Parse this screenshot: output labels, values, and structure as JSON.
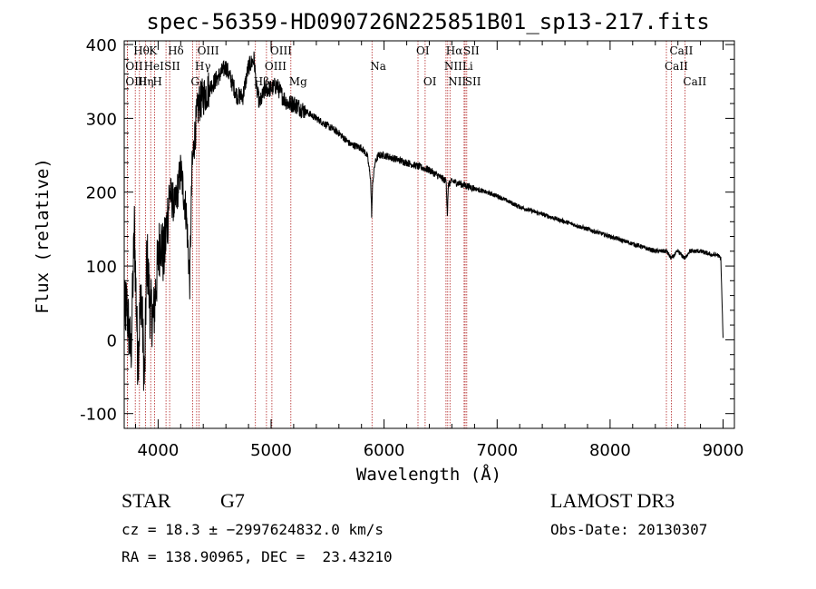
{
  "chart_data": {
    "type": "line",
    "title": "spec-56359-HD090726N225851B01_sp13-217.fits",
    "xlabel": "Wavelength (Å)",
    "ylabel": "Flux (relative)",
    "xlim": [
      3700,
      9100
    ],
    "ylim": [
      -120,
      405
    ],
    "xticks": [
      4000,
      5000,
      6000,
      7000,
      8000,
      9000
    ],
    "yticks": [
      -100,
      0,
      100,
      200,
      300,
      400
    ],
    "spectrum_anchors": {
      "x": [
        3700,
        3720,
        3760,
        3790,
        3820,
        3850,
        3880,
        3900,
        3930,
        3960,
        3990,
        4020,
        4050,
        4080,
        4100,
        4150,
        4200,
        4250,
        4280,
        4300,
        4320,
        4340,
        4360,
        4400,
        4450,
        4500,
        4550,
        4600,
        4650,
        4700,
        4750,
        4800,
        4850,
        4870,
        4900,
        4950,
        5000,
        5050,
        5100,
        5150,
        5200,
        5250,
        5300,
        5400,
        5500,
        5600,
        5700,
        5800,
        5850,
        5880,
        5890,
        5900,
        5920,
        5950,
        6000,
        6100,
        6200,
        6300,
        6400,
        6500,
        6550,
        6560,
        6570,
        6600,
        6700,
        6800,
        6900,
        7000,
        7200,
        7400,
        7600,
        7800,
        8000,
        8200,
        8400,
        8500,
        8542,
        8600,
        8662,
        8700,
        8800,
        8900,
        8950,
        8980,
        9000
      ],
      "y": [
        30,
        50,
        -20,
        150,
        -30,
        70,
        -60,
        120,
        40,
        30,
        90,
        140,
        110,
        160,
        200,
        180,
        230,
        170,
        80,
        230,
        270,
        300,
        320,
        330,
        340,
        350,
        360,
        370,
        350,
        330,
        330,
        370,
        380,
        340,
        320,
        340,
        340,
        345,
        330,
        320,
        320,
        315,
        310,
        300,
        290,
        280,
        265,
        260,
        250,
        220,
        170,
        215,
        240,
        250,
        250,
        245,
        240,
        235,
        230,
        220,
        215,
        170,
        210,
        215,
        210,
        205,
        200,
        195,
        180,
        170,
        160,
        150,
        140,
        130,
        120,
        120,
        110,
        120,
        110,
        120,
        120,
        115,
        115,
        110,
        0
      ]
    },
    "spectral_lines": [
      {
        "label": "Hθ",
        "wavelength": 3798,
        "row": 0
      },
      {
        "label": "OII",
        "wavelength": 3727,
        "row": 1
      },
      {
        "label": "OIII",
        "wavelength": 3727,
        "row": 2
      },
      {
        "label": "K",
        "wavelength": 3934,
        "row": 0
      },
      {
        "label": "HeI",
        "wavelength": 3889,
        "row": 1
      },
      {
        "label": "Hη",
        "wavelength": 3835,
        "row": 2
      },
      {
        "label": "SII",
        "wavelength": 4070,
        "row": 1
      },
      {
        "label": "H",
        "wavelength": 3968,
        "row": 2
      },
      {
        "label": "Hδ",
        "wavelength": 4102,
        "row": 0
      },
      {
        "label": "OIII",
        "wavelength": 4363,
        "row": 0
      },
      {
        "label": "Hγ",
        "wavelength": 4341,
        "row": 1
      },
      {
        "label": "G",
        "wavelength": 4305,
        "row": 2
      },
      {
        "label": "OIII",
        "wavelength": 5007,
        "row": 0
      },
      {
        "label": "OIII",
        "wavelength": 4959,
        "row": 1
      },
      {
        "label": "Hβ",
        "wavelength": 4861,
        "row": 2
      },
      {
        "label": "Mg",
        "wavelength": 5175,
        "row": 2
      },
      {
        "label": "Na",
        "wavelength": 5893,
        "row": 1
      },
      {
        "label": "OI",
        "wavelength": 6300,
        "row": 0
      },
      {
        "label": "OI",
        "wavelength": 6363,
        "row": 2
      },
      {
        "label": "Hα",
        "wavelength": 6563,
        "row": 0
      },
      {
        "label": "NII",
        "wavelength": 6548,
        "row": 1
      },
      {
        "label": "NII",
        "wavelength": 6583,
        "row": 2
      },
      {
        "label": "SII",
        "wavelength": 6717,
        "row": 0
      },
      {
        "label": "Li",
        "wavelength": 6708,
        "row": 1
      },
      {
        "label": "SII",
        "wavelength": 6731,
        "row": 2
      },
      {
        "label": "CaII",
        "wavelength": 8542,
        "row": 0
      },
      {
        "label": "CaII",
        "wavelength": 8498,
        "row": 1
      },
      {
        "label": "CaII",
        "wavelength": 8662,
        "row": 2
      }
    ]
  },
  "info": {
    "object_class": "STAR",
    "subclass": "G7",
    "survey": "LAMOST DR3",
    "redshift": "cz = 18.3 ± −2997624832.0 km/s",
    "obs_date": "Obs-Date: 20130307",
    "coords": "RA = 138.90965, DEC =  23.43210"
  },
  "colors": {
    "line_marker": "#b22222",
    "spectrum": "#000000",
    "axes": "#000000"
  }
}
